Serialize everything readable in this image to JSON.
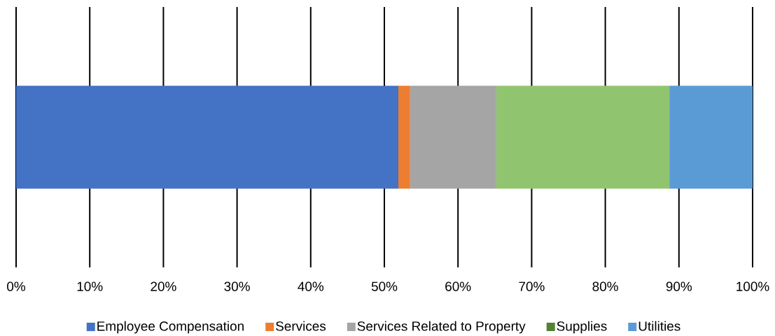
{
  "chart_data": {
    "type": "bar",
    "orientation": "horizontal",
    "stacked": true,
    "categories": [
      null
    ],
    "series": [
      {
        "name": "Employee Compensation",
        "color": "#4472c4",
        "values": [
          51.9
        ]
      },
      {
        "name": "Services",
        "color": "#ed7d31",
        "values": [
          1.6
        ]
      },
      {
        "name": "Services Related to Property",
        "color": "#a5a5a5",
        "values": [
          11.7
        ]
      },
      {
        "name": "Supplies",
        "color": "#548235",
        "values": [
          null
        ]
      },
      {
        "color": "#91c46f",
        "values": [
          23.5
        ]
      },
      {
        "name": "Utilities",
        "color": "#5b9bd5",
        "values": [
          11.3
        ]
      }
    ],
    "xlim": [
      0,
      100
    ],
    "xticks": [
      {
        "value": 0,
        "label": "0%"
      },
      {
        "value": 10,
        "label": "10%"
      },
      {
        "value": 20,
        "label": "20%"
      },
      {
        "value": 30,
        "label": "30%"
      },
      {
        "value": 40,
        "label": "40%"
      },
      {
        "value": 50,
        "label": "50%"
      },
      {
        "value": 60,
        "label": "60%"
      },
      {
        "value": 70,
        "label": "70%"
      },
      {
        "value": 80,
        "label": "80%"
      },
      {
        "value": 90,
        "label": "90%"
      },
      {
        "value": 100,
        "label": "100%"
      }
    ],
    "grid": "x",
    "legend": "bottom",
    "tick_labels": "x"
  }
}
